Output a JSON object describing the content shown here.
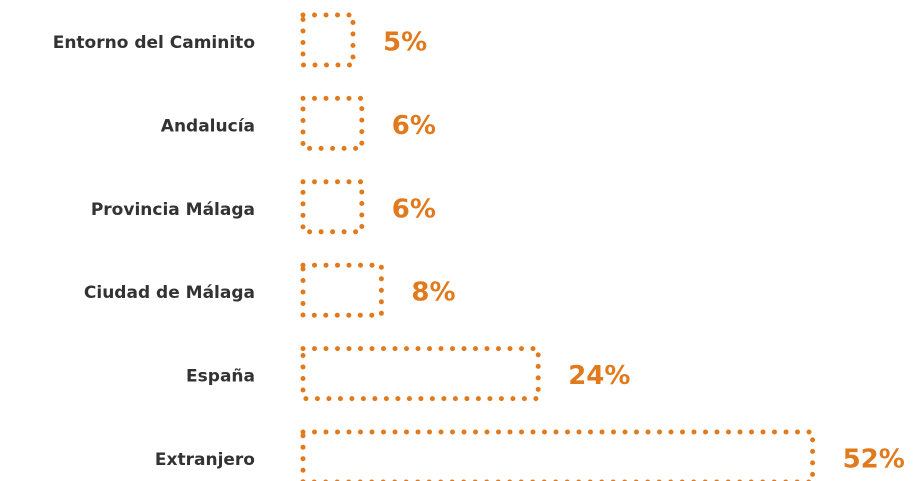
{
  "chart_data": {
    "type": "bar",
    "orientation": "horizontal",
    "categories": [
      "Entorno del Caminito",
      "Andalucía",
      "Provincia Málaga",
      "Ciudad de Málaga",
      "España",
      "Extranjero"
    ],
    "values": [
      5,
      6,
      6,
      8,
      24,
      52
    ],
    "value_labels": [
      "5%",
      "6%",
      "6%",
      "8%",
      "24%",
      "52%"
    ],
    "color": "#e07a1c"
  }
}
